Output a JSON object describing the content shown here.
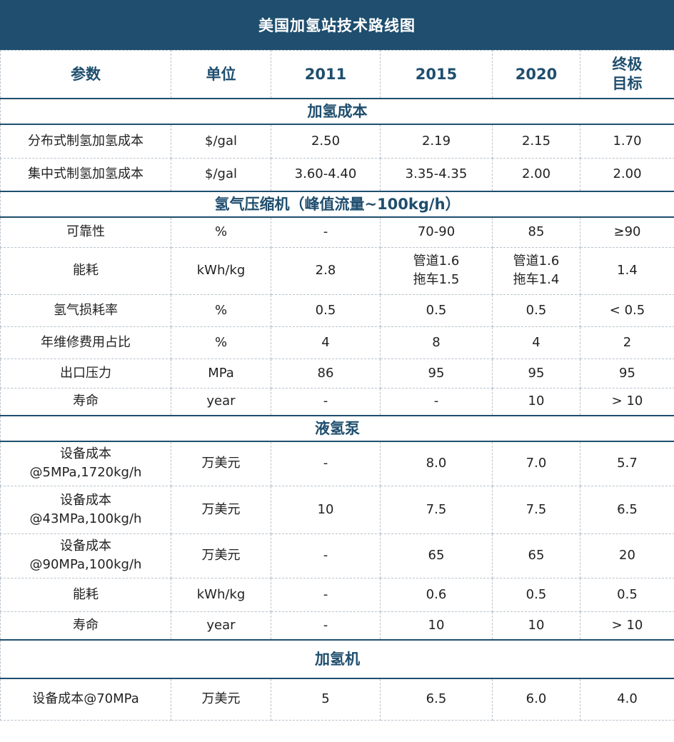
{
  "title": "美国加氢站技术路线图",
  "columns": [
    "参数",
    "单位",
    "2011",
    "2015",
    "2020",
    "终极目标"
  ],
  "column_header_last_lines": [
    "终极",
    "目标"
  ],
  "sections": [
    {
      "name": "加氢成本",
      "rows": [
        {
          "param": [
            "分布式制氢加氢成本"
          ],
          "unit": "$/gal",
          "y2011": [
            "2.50"
          ],
          "y2015": [
            "2.19"
          ],
          "y2020": [
            "2.15"
          ],
          "target": "1.70"
        },
        {
          "param": [
            "集中式制氢加氢成本"
          ],
          "unit": "$/gal",
          "y2011": [
            "3.60-4.40"
          ],
          "y2015": [
            "3.35-4.35"
          ],
          "y2020": [
            "2.00"
          ],
          "target": "2.00"
        }
      ]
    },
    {
      "name": "氢气压缩机（峰值流量~100kg/h）",
      "rows": [
        {
          "param": [
            "可靠性"
          ],
          "unit": "%",
          "y2011": [
            "-"
          ],
          "y2015": [
            "70-90"
          ],
          "y2020": [
            "85"
          ],
          "target": "≥90"
        },
        {
          "param": [
            "能耗"
          ],
          "unit": "kWh/kg",
          "y2011": [
            "2.8"
          ],
          "y2015": [
            "管道1.6",
            "拖车1.5"
          ],
          "y2020": [
            "管道1.6",
            "拖车1.4"
          ],
          "target": "1.4"
        },
        {
          "param": [
            "氢气损耗率"
          ],
          "unit": "%",
          "y2011": [
            "0.5"
          ],
          "y2015": [
            "0.5"
          ],
          "y2020": [
            "0.5"
          ],
          "target": "< 0.5"
        },
        {
          "param": [
            "年维修费用占比"
          ],
          "unit": "%",
          "y2011": [
            "4"
          ],
          "y2015": [
            "8"
          ],
          "y2020": [
            "4"
          ],
          "target": "2"
        },
        {
          "param": [
            "出口压力"
          ],
          "unit": "MPa",
          "y2011": [
            "86"
          ],
          "y2015": [
            "95"
          ],
          "y2020": [
            "95"
          ],
          "target": "95"
        },
        {
          "param": [
            "寿命"
          ],
          "unit": "year",
          "y2011": [
            "-"
          ],
          "y2015": [
            "-"
          ],
          "y2020": [
            "10"
          ],
          "target": "> 10"
        }
      ]
    },
    {
      "name": "液氢泵",
      "rows": [
        {
          "param": [
            "设备成本",
            "@5MPa,1720kg/h"
          ],
          "unit": "万美元",
          "y2011": [
            "-"
          ],
          "y2015": [
            "8.0"
          ],
          "y2020": [
            "7.0"
          ],
          "target": "5.7"
        },
        {
          "param": [
            "设备成本",
            "@43MPa,100kg/h"
          ],
          "unit": "万美元",
          "y2011": [
            "10"
          ],
          "y2015": [
            "7.5"
          ],
          "y2020": [
            "7.5"
          ],
          "target": "6.5"
        },
        {
          "param": [
            "设备成本",
            "@90MPa,100kg/h"
          ],
          "unit": "万美元",
          "y2011": [
            "-"
          ],
          "y2015": [
            "65"
          ],
          "y2020": [
            "65"
          ],
          "target": "20"
        },
        {
          "param": [
            "能耗"
          ],
          "unit": "kWh/kg",
          "y2011": [
            "-"
          ],
          "y2015": [
            "0.6"
          ],
          "y2020": [
            "0.5"
          ],
          "target": "0.5"
        },
        {
          "param": [
            "寿命"
          ],
          "unit": "year",
          "y2011": [
            "-"
          ],
          "y2015": [
            "10"
          ],
          "y2020": [
            "10"
          ],
          "target": "> 10"
        }
      ]
    },
    {
      "name": "加氢机",
      "rows": [
        {
          "param": [
            "设备成本@70MPa"
          ],
          "unit": "万美元",
          "y2011": [
            "5"
          ],
          "y2015": [
            "6.5"
          ],
          "y2020": [
            "6.0"
          ],
          "target": "4.0"
        }
      ]
    }
  ]
}
